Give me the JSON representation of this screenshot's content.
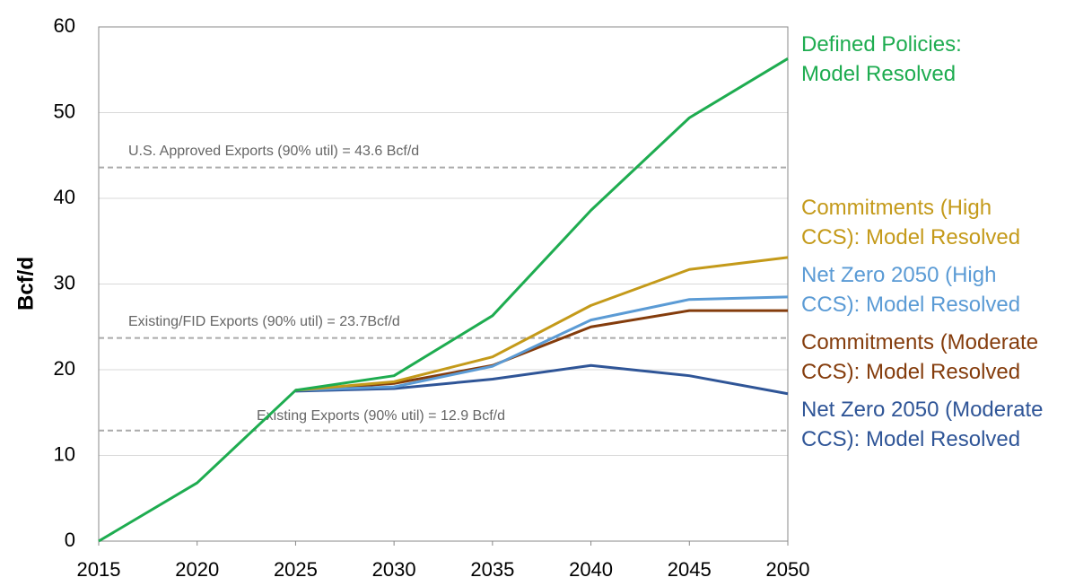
{
  "chart_data": {
    "type": "line",
    "y_label": "Bcf/d",
    "x": [
      2015,
      2020,
      2025,
      2030,
      2035,
      2040,
      2045,
      2050
    ],
    "xlim": [
      2015,
      2050
    ],
    "xticks": [
      2015,
      2020,
      2025,
      2030,
      2035,
      2040,
      2045,
      2050
    ],
    "ylim": [
      0,
      60
    ],
    "yticks": [
      0,
      10,
      20,
      30,
      40,
      50,
      60
    ],
    "grid": true,
    "series": [
      {
        "name": "Defined Policies:\nModel Resolved",
        "color": "#1eac50",
        "values": [
          0,
          6.8,
          17.6,
          19.3,
          26.3,
          38.6,
          49.4,
          56.3
        ]
      },
      {
        "name": "Commitments (High\nCCS): Model Resolved",
        "color": "#c49a1a",
        "values": [
          null,
          null,
          17.6,
          18.6,
          21.5,
          27.5,
          31.7,
          33.1
        ]
      },
      {
        "name": "Net Zero 2050 (High\nCCS): Model Resolved",
        "color": "#5b9bd5",
        "values": [
          null,
          null,
          17.6,
          18.0,
          20.4,
          25.8,
          28.2,
          28.5
        ]
      },
      {
        "name": "Commitments (Moderate\nCCS): Model Resolved",
        "color": "#843c0c",
        "values": [
          null,
          null,
          17.6,
          18.4,
          20.5,
          25.0,
          26.9,
          26.9
        ]
      },
      {
        "name": "Net Zero 2050 (Moderate\nCCS): Model Resolved",
        "color": "#2f5597",
        "values": [
          null,
          null,
          17.5,
          17.8,
          18.9,
          20.5,
          19.3,
          17.2
        ]
      }
    ],
    "reference_lines": [
      {
        "value": 43.6,
        "label": "U.S. Approved Exports (90% util) = 43.6 Bcf/d"
      },
      {
        "value": 23.7,
        "label": "Existing/FID Exports (90% util) = 23.7Bcf/d"
      },
      {
        "value": 12.9,
        "label": "Existing Exports (90% util) = 12.9 Bcf/d"
      }
    ]
  }
}
